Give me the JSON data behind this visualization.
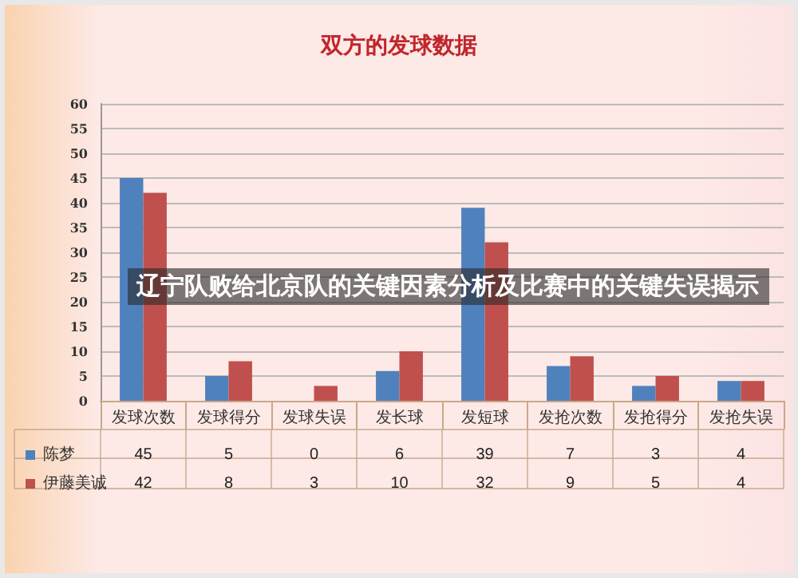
{
  "chart_data": {
    "type": "bar",
    "title": "双方的发球数据",
    "categories": [
      "发球次数",
      "发球得分",
      "发球失误",
      "发长球",
      "发短球",
      "发抢次数",
      "发抢得分",
      "发抢失误"
    ],
    "series": [
      {
        "name": "陈梦",
        "color": "#4f81bd",
        "values": [
          45,
          5,
          0,
          6,
          39,
          7,
          3,
          4
        ]
      },
      {
        "name": "伊藤美诚",
        "color": "#c0504d",
        "values": [
          42,
          8,
          3,
          10,
          32,
          9,
          5,
          4
        ]
      }
    ],
    "ylim": [
      0,
      60
    ],
    "yticks": [
      0,
      5,
      10,
      15,
      20,
      25,
      30,
      35,
      40,
      45,
      50,
      55,
      60
    ],
    "grid": "y",
    "legend": "bottom left",
    "data_labels": true,
    "annotations": [
      "辽宁队败给北京队的关键因素分析及比赛中的关键失误揭示"
    ]
  }
}
